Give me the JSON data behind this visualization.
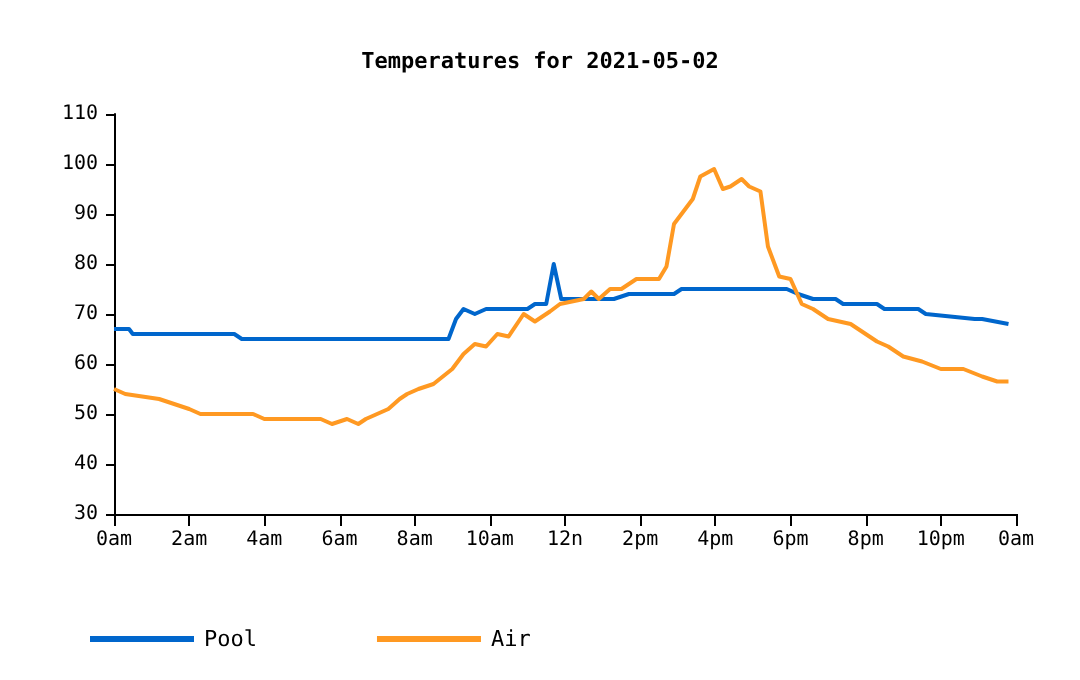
{
  "chart_data": {
    "type": "line",
    "title": "Temperatures for 2021-05-02",
    "xlim": [
      "2021-05-02T00:00",
      "2021-05-03T00:00"
    ],
    "xticks": [
      {
        "value": "2021-05-02T00:00",
        "label": "0am"
      },
      {
        "value": "2021-05-02T02:00",
        "label": "2am"
      },
      {
        "value": "2021-05-02T04:00",
        "label": "4am"
      },
      {
        "value": "2021-05-02T06:00",
        "label": "6am"
      },
      {
        "value": "2021-05-02T08:00",
        "label": "8am"
      },
      {
        "value": "2021-05-02T10:00",
        "label": "10am"
      },
      {
        "value": "2021-05-02T12:00",
        "label": "12n"
      },
      {
        "value": "2021-05-02T14:00",
        "label": "2pm"
      },
      {
        "value": "2021-05-02T16:00",
        "label": "4pm"
      },
      {
        "value": "2021-05-02T18:00",
        "label": "6pm"
      },
      {
        "value": "2021-05-02T20:00",
        "label": "8pm"
      },
      {
        "value": "2021-05-02T22:00",
        "label": "10pm"
      },
      {
        "value": "2021-05-03T00:00",
        "label": "0am"
      }
    ],
    "ylim": [
      30,
      110
    ],
    "yticks": [
      30,
      40,
      50,
      60,
      70,
      80,
      90,
      100,
      110
    ],
    "grid": false,
    "legend": "bottom",
    "marker": "none",
    "line_style": "solid",
    "series": [
      {
        "name": "Pool",
        "color": "#0066cc",
        "x": [
          "2021-05-02T00:00",
          "2021-05-02T00:24",
          "2021-05-02T00:30",
          "2021-05-02T03:12",
          "2021-05-02T03:24",
          "2021-05-02T08:54",
          "2021-05-02T09:06",
          "2021-05-02T09:18",
          "2021-05-02T09:36",
          "2021-05-02T09:54",
          "2021-05-02T10:12",
          "2021-05-02T11:00",
          "2021-05-02T11:12",
          "2021-05-02T11:30",
          "2021-05-02T11:42",
          "2021-05-02T11:54",
          "2021-05-02T12:00",
          "2021-05-02T13:18",
          "2021-05-02T13:42",
          "2021-05-02T14:54",
          "2021-05-02T15:06",
          "2021-05-02T17:54",
          "2021-05-02T18:12",
          "2021-05-02T18:36",
          "2021-05-02T19:12",
          "2021-05-02T19:24",
          "2021-05-02T20:18",
          "2021-05-02T20:30",
          "2021-05-02T21:24",
          "2021-05-02T21:36",
          "2021-05-02T22:54",
          "2021-05-02T23:06",
          "2021-05-02T23:48"
        ],
        "values": [
          67,
          67,
          66,
          66,
          65,
          65,
          69,
          71,
          70,
          71,
          71,
          71,
          72,
          72,
          80,
          73,
          73,
          73,
          74,
          74,
          75,
          75,
          74,
          73,
          73,
          72,
          72,
          71,
          71,
          70,
          69,
          69,
          68
        ]
      },
      {
        "name": "Air",
        "color": "#ff9922",
        "x": [
          "2021-05-02T00:00",
          "2021-05-02T00:18",
          "2021-05-02T01:12",
          "2021-05-02T01:36",
          "2021-05-02T02:00",
          "2021-05-02T02:18",
          "2021-05-02T03:42",
          "2021-05-02T04:00",
          "2021-05-02T05:30",
          "2021-05-02T05:48",
          "2021-05-02T06:12",
          "2021-05-02T06:30",
          "2021-05-02T06:42",
          "2021-05-02T07:00",
          "2021-05-02T07:18",
          "2021-05-02T07:36",
          "2021-05-02T07:48",
          "2021-05-02T08:06",
          "2021-05-02T08:30",
          "2021-05-02T09:00",
          "2021-05-02T09:18",
          "2021-05-02T09:36",
          "2021-05-02T09:54",
          "2021-05-02T10:12",
          "2021-05-02T10:30",
          "2021-05-02T10:54",
          "2021-05-02T11:12",
          "2021-05-02T11:36",
          "2021-05-02T11:52",
          "2021-05-02T12:30",
          "2021-05-02T12:42",
          "2021-05-02T12:54",
          "2021-05-02T13:12",
          "2021-05-02T13:30",
          "2021-05-02T13:54",
          "2021-05-02T14:30",
          "2021-05-02T14:42",
          "2021-05-02T14:54",
          "2021-05-02T15:24",
          "2021-05-02T15:36",
          "2021-05-02T15:58",
          "2021-05-02T16:12",
          "2021-05-02T16:24",
          "2021-05-02T16:42",
          "2021-05-02T16:54",
          "2021-05-02T17:12",
          "2021-05-02T17:24",
          "2021-05-02T17:42",
          "2021-05-02T18:00",
          "2021-05-02T18:18",
          "2021-05-02T18:36",
          "2021-05-02T19:00",
          "2021-05-02T19:36",
          "2021-05-02T19:54",
          "2021-05-02T20:18",
          "2021-05-02T20:36",
          "2021-05-02T21:00",
          "2021-05-02T21:30",
          "2021-05-02T22:00",
          "2021-05-02T22:36",
          "2021-05-02T23:06",
          "2021-05-02T23:30",
          "2021-05-02T23:48"
        ],
        "values": [
          55,
          54,
          53,
          52,
          51,
          50,
          50,
          49,
          49,
          48,
          49,
          48,
          49,
          50,
          51,
          53,
          54,
          55,
          56,
          59,
          62,
          64,
          63.5,
          66,
          65.5,
          70,
          68.5,
          70.5,
          72,
          73,
          74.5,
          73,
          75,
          75,
          77,
          77,
          79.5,
          88,
          93,
          97.5,
          99,
          95,
          95.5,
          97,
          95.5,
          94.5,
          83.5,
          77.5,
          77,
          72,
          71,
          69,
          68,
          66.5,
          64.5,
          63.5,
          61.5,
          60.5,
          59,
          59,
          57.5,
          56.5,
          56.5
        ]
      }
    ]
  }
}
